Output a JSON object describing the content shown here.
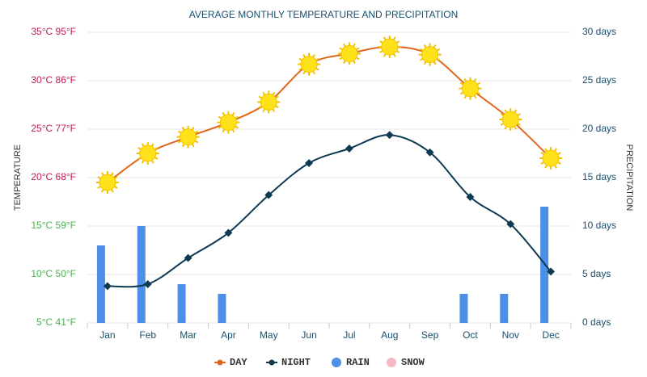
{
  "chart_data": {
    "type": "combo",
    "subtitle": "AVERAGE MONTHLY TEMPERATURE AND PRECIPITATION",
    "y_label": "TEMPERATURE",
    "y2_label": "PRECIPITATION",
    "categories": [
      "Jan",
      "Feb",
      "Mar",
      "Apr",
      "May",
      "Jun",
      "Jul",
      "Aug",
      "Sep",
      "Oct",
      "Nov",
      "Dec"
    ],
    "series": [
      {
        "name": "DAY",
        "type": "line",
        "axis": "y",
        "color": "#e0661c",
        "values": [
          19.5,
          22.5,
          24.2,
          25.7,
          27.8,
          31.7,
          32.8,
          33.5,
          32.7,
          29.2,
          26,
          22
        ]
      },
      {
        "name": "NIGHT",
        "type": "line",
        "axis": "y",
        "color": "#0e3a52",
        "values": [
          8.8,
          9,
          11.7,
          14.3,
          18.2,
          21.5,
          23,
          24.4,
          22.6,
          18,
          15.2,
          10.3
        ]
      },
      {
        "name": "RAIN",
        "type": "bar",
        "axis": "y2",
        "color": "#4d8fe6",
        "values": [
          8,
          10,
          4,
          3,
          0,
          0,
          0,
          0,
          0,
          3,
          3,
          12
        ]
      },
      {
        "name": "SNOW",
        "type": "bar",
        "axis": "y2",
        "color": "#f5b8c4",
        "values": [
          0,
          0,
          0,
          0,
          0,
          0,
          0,
          0,
          0,
          0,
          0,
          0
        ]
      }
    ],
    "ylim": [
      5,
      35
    ],
    "yticks": [
      {
        "value": 5,
        "label": "5°C 41°F"
      },
      {
        "value": 10,
        "label": "10°C 50°F"
      },
      {
        "value": 15,
        "label": "15°C 59°F"
      },
      {
        "value": 20,
        "label": "20°C 68°F"
      },
      {
        "value": 25,
        "label": "25°C 77°F"
      },
      {
        "value": 30,
        "label": "30°C 86°F"
      },
      {
        "value": 35,
        "label": "35°C 95°F"
      }
    ],
    "ytick_colors": [
      "#4caf50",
      "#4caf50",
      "#4caf50",
      "#c2185b",
      "#c2185b",
      "#c2185b",
      "#c2185b"
    ],
    "y2lim": [
      0,
      30
    ],
    "y2ticks": [
      {
        "value": 0,
        "label": "0 days"
      },
      {
        "value": 5,
        "label": "5 days"
      },
      {
        "value": 10,
        "label": "10 days"
      },
      {
        "value": 15,
        "label": "15 days"
      },
      {
        "value": 20,
        "label": "20 days"
      },
      {
        "value": 25,
        "label": "25 days"
      },
      {
        "value": 30,
        "label": "30 days"
      }
    ],
    "y2tick_color": "#1a4f6e",
    "grid": true
  }
}
